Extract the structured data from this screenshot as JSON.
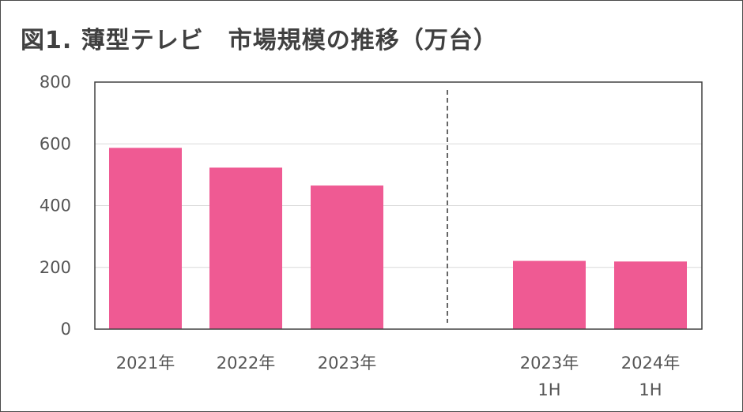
{
  "chart_data": {
    "type": "bar",
    "title": "図1. 薄型テレビ　市場規模の推移（万台）",
    "categories": [
      {
        "line1": "2021年",
        "line2": ""
      },
      {
        "line1": "2022年",
        "line2": ""
      },
      {
        "line1": "2023年",
        "line2": ""
      },
      {
        "line1": "2023年",
        "line2": "1H"
      },
      {
        "line1": "2024年",
        "line2": "1H"
      }
    ],
    "values": [
      587,
      523,
      465,
      221,
      219
    ],
    "ylim": [
      0,
      800
    ],
    "yticks": [
      0,
      200,
      400,
      600,
      800
    ],
    "grid": true,
    "bar_color": "#ef5a93",
    "separator": "dashed line between annual and first-half (1H) groups",
    "legend": "none"
  }
}
